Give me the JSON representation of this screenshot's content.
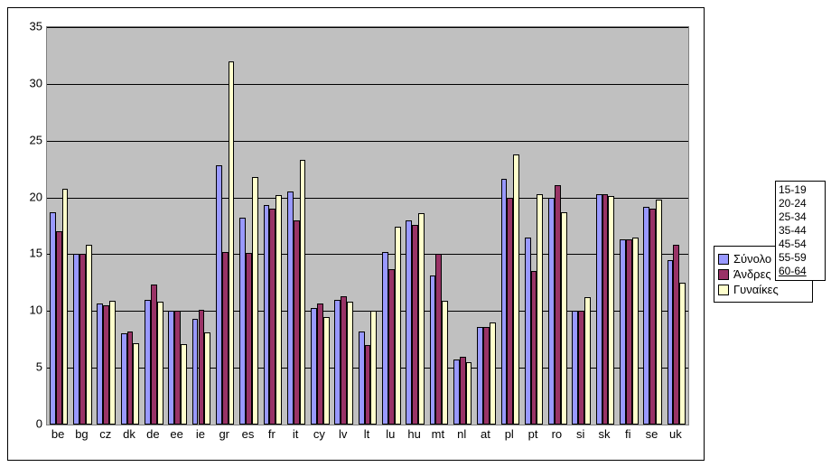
{
  "chart": {
    "type": "bar",
    "background_color": "#c0c0c0",
    "grid_color": "#000000",
    "border_color": "#808080",
    "outer_border_color": "#000000",
    "ylim": [
      0,
      35
    ],
    "ytick_step": 5,
    "yticks": [
      0,
      5,
      10,
      15,
      20,
      25,
      30,
      35
    ],
    "categories": [
      "be",
      "bg",
      "cz",
      "dk",
      "de",
      "ee",
      "ie",
      "gr",
      "es",
      "fr",
      "it",
      "cy",
      "lv",
      "lt",
      "lu",
      "hu",
      "mt",
      "nl",
      "at",
      "pl",
      "pt",
      "ro",
      "si",
      "sk",
      "fi",
      "se",
      "uk"
    ],
    "series": [
      {
        "name": "Σύνολο",
        "color": "#9999ff",
        "values": [
          18.7,
          15.0,
          10.7,
          8.0,
          11.0,
          10.0,
          9.3,
          22.8,
          18.2,
          19.3,
          20.5,
          10.3,
          11.0,
          8.2,
          15.2,
          18.0,
          13.1,
          5.7,
          8.6,
          21.6,
          16.5,
          20.0,
          10.0,
          20.3,
          16.3,
          19.2,
          14.5
        ]
      },
      {
        "name": "Άνδρες",
        "color": "#993366",
        "values": [
          17.0,
          15.0,
          10.5,
          8.2,
          12.3,
          10.0,
          10.1,
          15.2,
          15.1,
          19.0,
          18.0,
          10.7,
          11.3,
          7.0,
          13.7,
          17.6,
          15.0,
          6.0,
          8.6,
          20.0,
          13.5,
          21.1,
          10.0,
          20.3,
          16.3,
          19.0,
          15.8
        ]
      },
      {
        "name": "Γυναίκες",
        "color": "#ffffcc",
        "values": [
          20.8,
          15.8,
          10.9,
          7.2,
          10.8,
          7.1,
          8.1,
          32.0,
          21.8,
          20.2,
          23.3,
          9.5,
          10.8,
          10.0,
          17.4,
          18.6,
          10.9,
          5.5,
          9.0,
          23.8,
          20.3,
          18.7,
          11.2,
          20.1,
          16.5,
          19.8,
          12.5
        ]
      }
    ],
    "bar_group_width": 0.78,
    "xlabel_fontsize": 13,
    "ylabel_fontsize": 13
  },
  "legend_series": {
    "items": [
      {
        "label": "Σύνολο",
        "color": "#9999ff"
      },
      {
        "label": "Άνδρες",
        "color": "#993366"
      },
      {
        "label": "Γυναίκες",
        "color": "#ffffcc"
      }
    ]
  },
  "legend_age": {
    "items": [
      "15-19",
      "20-24",
      "25-34",
      "35-44",
      "45-54",
      "55-59",
      "60-64"
    ]
  }
}
